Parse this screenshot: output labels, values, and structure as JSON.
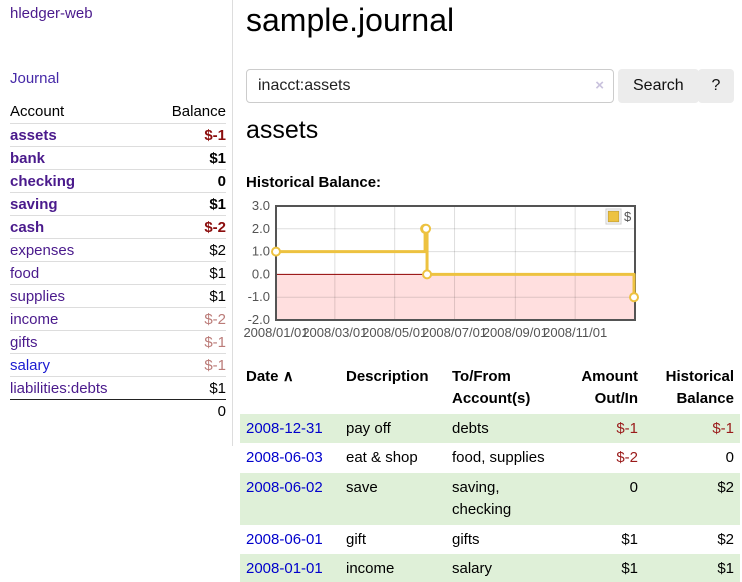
{
  "app": {
    "brand": "hledger-web"
  },
  "nav": {
    "journal": "Journal"
  },
  "main": {
    "title": "sample.journal"
  },
  "search": {
    "value": "inacct:assets",
    "clear_icon": "×",
    "search_button": "Search",
    "help_button": "?"
  },
  "account_view": {
    "heading": "assets",
    "chart_title": "Historical Balance:"
  },
  "sidebar_table": {
    "col_account": "Account",
    "col_balance": "Balance",
    "accounts": [
      {
        "name": "assets",
        "balance": "$-1"
      },
      {
        "name": "bank",
        "balance": "$1"
      },
      {
        "name": "checking",
        "balance": "0"
      },
      {
        "name": "saving",
        "balance": "$1"
      },
      {
        "name": "cash",
        "balance": "$-2"
      },
      {
        "name": "expenses",
        "balance": "$2"
      },
      {
        "name": "food",
        "balance": "$1"
      },
      {
        "name": "supplies",
        "balance": "$1"
      },
      {
        "name": "income",
        "balance": "$-2"
      },
      {
        "name": "gifts",
        "balance": "$-1"
      },
      {
        "name": "salary",
        "balance": "$-1"
      },
      {
        "name": "liabilities:debts",
        "balance": "$1"
      }
    ],
    "total": "0"
  },
  "chart_data": {
    "type": "line",
    "step": true,
    "title": "Historical Balance:",
    "series": [
      {
        "name": "$",
        "color": "#edc240",
        "points": [
          [
            "2008-01-01",
            1
          ],
          [
            "2008-06-01",
            2
          ],
          [
            "2008-06-02",
            2
          ],
          [
            "2008-06-03",
            0
          ],
          [
            "2008-12-31",
            -1
          ]
        ]
      }
    ],
    "xlim": [
      "2008-01-01",
      "2009-01-01"
    ],
    "ylim": [
      -2,
      3
    ],
    "yticks": [
      3,
      2,
      1,
      0,
      -1,
      -2
    ],
    "ytick_labels": [
      "3.0",
      "2.0",
      "1.0",
      "0.0",
      "-1.0",
      "-2.0"
    ],
    "xticks": [
      "2008-01-01",
      "2008-03-01",
      "2008-05-01",
      "2008-07-01",
      "2008-09-01",
      "2008-11-01"
    ],
    "xtick_labels": [
      "2008/01/01",
      "2008/03/01",
      "2008/05/01",
      "2008/07/01",
      "2008/09/01",
      "2008/11/01"
    ],
    "legend": {
      "position": "top-right",
      "entries": [
        {
          "label": "$",
          "color": "#edc240"
        }
      ]
    },
    "grid": true,
    "grid_color": "rgba(0,0,0,0.13)",
    "border_color": "#545454",
    "zero_line_color": "#8f0000",
    "negative_region_color": "rgba(255,80,80,0.18)",
    "marker_fill": "#ffffff"
  },
  "register": {
    "headers": [
      "Date",
      "Description",
      "To/From Account(s)",
      "Amount Out/In",
      "Historical Balance"
    ],
    "sort_icon": "∧",
    "rows": [
      {
        "date": "2008-12-31",
        "description": "pay off",
        "accounts": "debts",
        "amount": "$-1",
        "balance": "$-1"
      },
      {
        "date": "2008-06-03",
        "description": "eat & shop",
        "accounts": "food, supplies",
        "amount": "$-2",
        "balance": "0"
      },
      {
        "date": "2008-06-02",
        "description": "save",
        "accounts": "saving, checking",
        "amount": "0",
        "balance": "$2"
      },
      {
        "date": "2008-06-01",
        "description": "gift",
        "accounts": "gifts",
        "amount": "$1",
        "balance": "$2"
      },
      {
        "date": "2008-01-01",
        "description": "income",
        "accounts": "salary",
        "amount": "$1",
        "balance": "$1"
      }
    ]
  }
}
